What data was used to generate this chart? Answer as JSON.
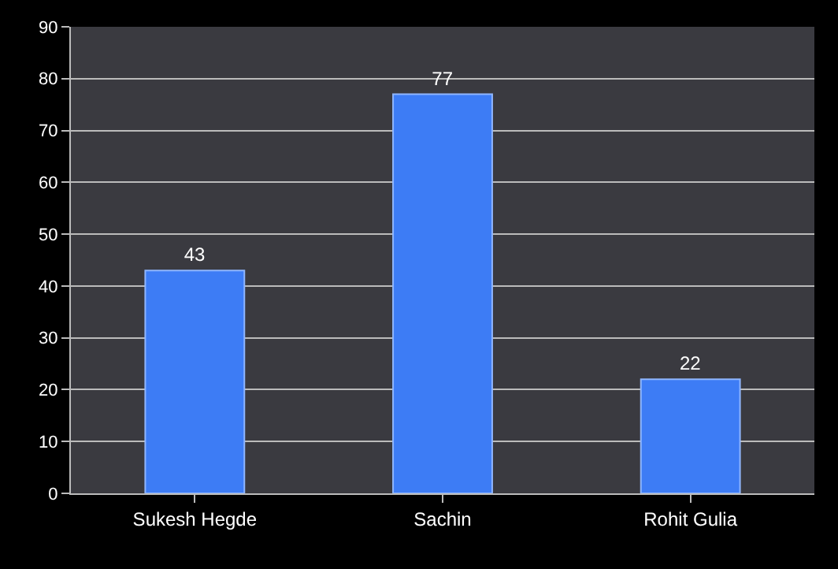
{
  "chart_data": {
    "type": "bar",
    "categories": [
      "Sukesh Hegde",
      "Sachin",
      "Rohit Gulia"
    ],
    "values": [
      43,
      77,
      22
    ],
    "color": "#3d7cf5",
    "ylim": [
      0,
      90
    ],
    "yticks": [
      0,
      10,
      20,
      30,
      40,
      50,
      60,
      70,
      80,
      90
    ],
    "grid": "y",
    "data_labels": true
  }
}
